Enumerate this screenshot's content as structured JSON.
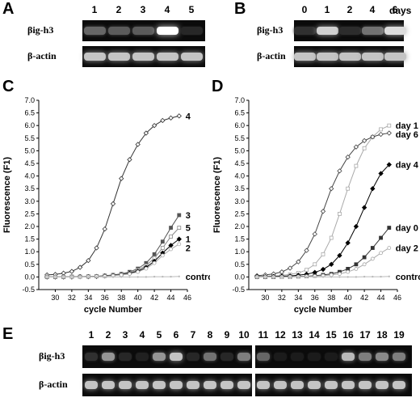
{
  "panels": {
    "A": {
      "letter": "A",
      "lanes": [
        "1",
        "2",
        "3",
        "4",
        "5"
      ],
      "rows": [
        {
          "label": "βig-h3",
          "intensities": [
            0.35,
            0.3,
            0.3,
            1.0,
            0.08
          ]
        },
        {
          "label": "β-actin",
          "intensities": [
            0.75,
            0.75,
            0.75,
            0.75,
            0.75
          ]
        }
      ]
    },
    "B": {
      "letter": "B",
      "lanes": [
        "0",
        "1",
        "2",
        "4",
        "6"
      ],
      "unit": "days",
      "rows": [
        {
          "label": "βig-h3",
          "intensities": [
            0.12,
            0.8,
            0.1,
            0.4,
            0.85
          ]
        },
        {
          "label": "β-actin",
          "intensities": [
            0.75,
            0.75,
            0.75,
            0.75,
            0.75
          ]
        }
      ]
    },
    "E": {
      "letter": "E",
      "lanes": [
        "1",
        "2",
        "3",
        "4",
        "5",
        "6",
        "7",
        "8",
        "9",
        "10",
        "11",
        "12",
        "13",
        "14",
        "15",
        "16",
        "17",
        "18",
        "19"
      ],
      "rows": [
        {
          "label": "βig-h3",
          "intensities": [
            0.12,
            0.55,
            0.08,
            0.05,
            0.55,
            0.75,
            0.08,
            0.4,
            0.08,
            0.45,
            0.35,
            0.03,
            0.03,
            0.03,
            0.03,
            0.7,
            0.45,
            0.5,
            0.45
          ]
        },
        {
          "label": "β-actin",
          "intensities": [
            0.75,
            0.75,
            0.75,
            0.75,
            0.75,
            0.75,
            0.75,
            0.75,
            0.75,
            0.75,
            0.75,
            0.75,
            0.75,
            0.75,
            0.75,
            0.75,
            0.75,
            0.75,
            0.75
          ]
        }
      ]
    }
  },
  "chart_data": [
    {
      "panel": "C",
      "type": "line",
      "xlabel": "cycle Number",
      "ylabel": "Fluorescence (F1)",
      "xlim": [
        28,
        46
      ],
      "ylim": [
        -0.5,
        7.0
      ],
      "xticks": [
        "30",
        "32",
        "34",
        "36",
        "38",
        "40",
        "42",
        "44",
        "46"
      ],
      "yticks": [
        "-0.5",
        "0.0",
        "0.5",
        "1.0",
        "1.5",
        "2.0",
        "2.5",
        "3.0",
        "3.5",
        "4.0",
        "4.5",
        "5.0",
        "5.5",
        "6.0",
        "6.5",
        "7.0"
      ],
      "x": [
        29,
        30,
        31,
        32,
        33,
        34,
        35,
        36,
        37,
        38,
        39,
        40,
        41,
        42,
        43,
        44,
        45
      ],
      "series": [
        {
          "name": "4",
          "marker": "open-diamond",
          "color": "#333333",
          "values": [
            0.08,
            0.1,
            0.15,
            0.22,
            0.38,
            0.65,
            1.15,
            1.9,
            2.9,
            3.9,
            4.65,
            5.25,
            5.7,
            6.0,
            6.2,
            6.3,
            6.38
          ]
        },
        {
          "name": "3",
          "marker": "square",
          "color": "#555555",
          "values": [
            0.0,
            0.0,
            0.0,
            0.01,
            0.01,
            0.02,
            0.03,
            0.05,
            0.08,
            0.12,
            0.2,
            0.33,
            0.55,
            0.9,
            1.4,
            1.95,
            2.45
          ]
        },
        {
          "name": "5",
          "marker": "open-square",
          "color": "#888888",
          "values": [
            0.0,
            0.0,
            0.0,
            0.01,
            0.01,
            0.02,
            0.03,
            0.04,
            0.07,
            0.1,
            0.16,
            0.28,
            0.45,
            0.75,
            1.15,
            1.6,
            1.95
          ]
        },
        {
          "name": "1",
          "marker": "diamond",
          "color": "#000000",
          "values": [
            0.0,
            0.0,
            0.0,
            0.0,
            0.01,
            0.01,
            0.02,
            0.04,
            0.06,
            0.09,
            0.14,
            0.23,
            0.38,
            0.62,
            0.95,
            1.25,
            1.5
          ]
        },
        {
          "name": "2",
          "marker": "open-circle",
          "color": "#aaaaaa",
          "values": [
            0.0,
            0.0,
            0.0,
            0.0,
            0.0,
            0.01,
            0.02,
            0.03,
            0.05,
            0.08,
            0.12,
            0.2,
            0.33,
            0.55,
            0.85,
            1.1,
            1.3
          ]
        },
        {
          "name": "control",
          "marker": "small",
          "color": "#bbbbbb",
          "values": [
            0.0,
            0.0,
            0.0,
            0.0,
            0.0,
            0.0,
            0.0,
            0.0,
            0.0,
            0.0,
            0.0,
            0.0,
            0.0,
            0.01,
            0.01,
            0.01,
            0.02
          ]
        }
      ]
    },
    {
      "panel": "D",
      "type": "line",
      "xlabel": "cycle Number",
      "ylabel": "Fluorescence (F1)",
      "xlim": [
        28,
        46
      ],
      "ylim": [
        -0.5,
        7.0
      ],
      "xticks": [
        "30",
        "32",
        "34",
        "36",
        "38",
        "40",
        "42",
        "44",
        "46"
      ],
      "yticks": [
        "-0.5",
        "0.0",
        "0.5",
        "1.0",
        "1.5",
        "2.0",
        "2.5",
        "3.0",
        "3.5",
        "4.0",
        "4.5",
        "5.0",
        "5.5",
        "6.0",
        "6.5",
        "7.0"
      ],
      "x": [
        29,
        30,
        31,
        32,
        33,
        34,
        35,
        36,
        37,
        38,
        39,
        40,
        41,
        42,
        43,
        44,
        45
      ],
      "series": [
        {
          "name": "day 1",
          "marker": "open-square",
          "color": "#aaaaaa",
          "values": [
            0.02,
            0.03,
            0.04,
            0.06,
            0.1,
            0.16,
            0.28,
            0.5,
            0.9,
            1.55,
            2.5,
            3.5,
            4.4,
            5.1,
            5.55,
            5.85,
            6.0
          ]
        },
        {
          "name": "day 6",
          "marker": "open-diamond",
          "color": "#444444",
          "values": [
            0.05,
            0.08,
            0.12,
            0.2,
            0.35,
            0.6,
            1.05,
            1.7,
            2.6,
            3.5,
            4.2,
            4.75,
            5.15,
            5.4,
            5.55,
            5.65,
            5.7
          ]
        },
        {
          "name": "day 4",
          "marker": "diamond",
          "color": "#000000",
          "values": [
            0.01,
            0.01,
            0.02,
            0.03,
            0.04,
            0.07,
            0.11,
            0.18,
            0.3,
            0.5,
            0.85,
            1.35,
            2.0,
            2.75,
            3.5,
            4.1,
            4.45
          ]
        },
        {
          "name": "day 0",
          "marker": "square",
          "color": "#333333",
          "values": [
            0.0,
            0.0,
            0.0,
            0.01,
            0.01,
            0.02,
            0.03,
            0.05,
            0.08,
            0.12,
            0.2,
            0.32,
            0.5,
            0.78,
            1.15,
            1.55,
            1.95
          ]
        },
        {
          "name": "day 2",
          "marker": "open-circle",
          "color": "#aaaaaa",
          "values": [
            0.0,
            0.0,
            0.0,
            0.0,
            0.01,
            0.01,
            0.02,
            0.03,
            0.05,
            0.08,
            0.12,
            0.2,
            0.32,
            0.5,
            0.72,
            0.95,
            1.15
          ]
        },
        {
          "name": "control",
          "marker": "small",
          "color": "#bbbbbb",
          "values": [
            0.0,
            0.0,
            0.0,
            0.0,
            0.0,
            0.0,
            0.0,
            0.0,
            0.0,
            0.0,
            0.0,
            0.0,
            0.0,
            0.01,
            0.01,
            0.01,
            0.02
          ]
        }
      ]
    }
  ]
}
